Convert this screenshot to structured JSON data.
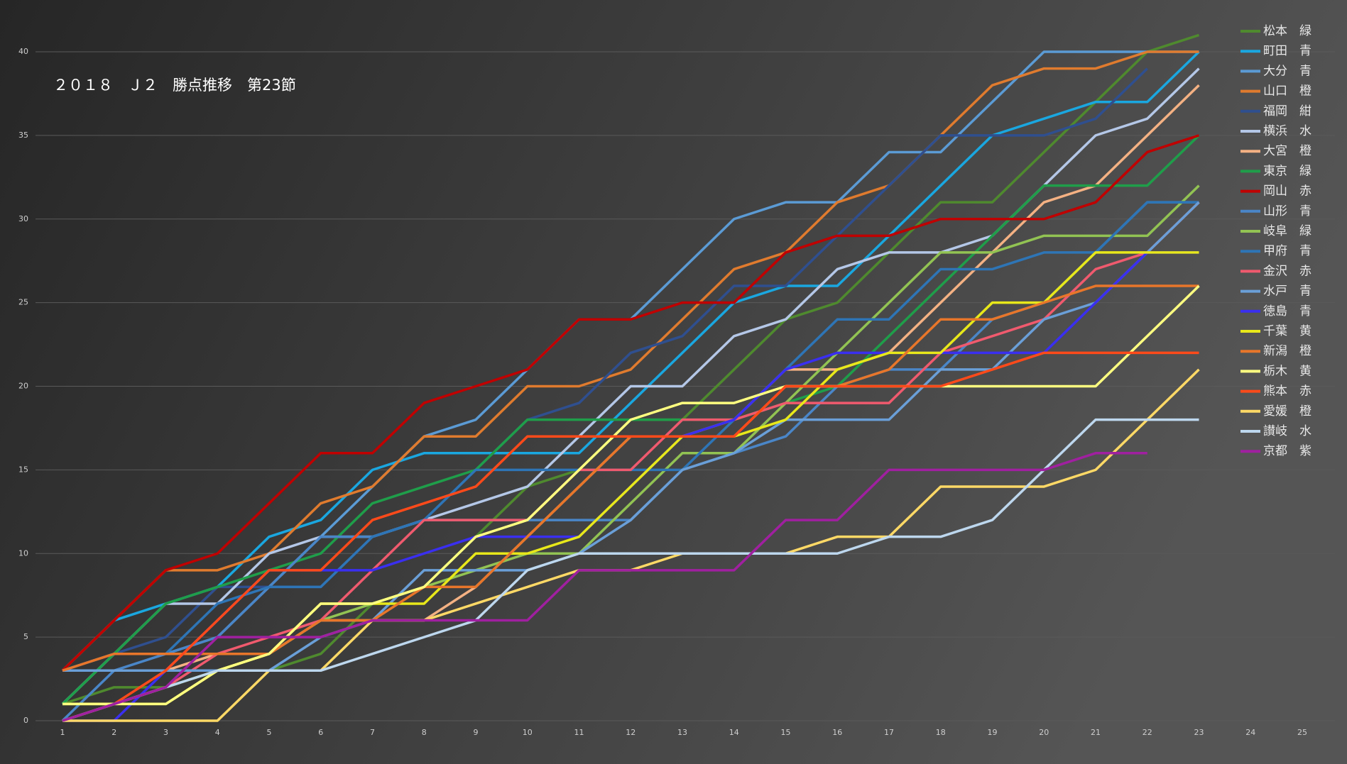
{
  "chart_data": {
    "type": "line",
    "title": "２０１８　Ｊ２　勝点推移　第23節",
    "categories": [
      "1",
      "2",
      "3",
      "4",
      "5",
      "6",
      "7",
      "8",
      "9",
      "10",
      "11",
      "12",
      "13",
      "14",
      "15",
      "16",
      "17",
      "18",
      "19",
      "20",
      "21",
      "22",
      "23",
      "24",
      "25"
    ],
    "ylim": [
      0,
      40
    ],
    "yticks": [
      0,
      5,
      10,
      15,
      20,
      25,
      30,
      35,
      40
    ],
    "grid": true,
    "legend": "right",
    "series": [
      {
        "name": "松本　緑",
        "color": "#4f8a2e",
        "values": [
          1,
          2,
          2,
          3,
          3,
          4,
          7,
          8,
          11,
          14,
          15,
          18,
          18,
          21,
          24,
          25,
          28,
          31,
          31,
          34,
          37,
          40,
          41,
          null,
          null
        ]
      },
      {
        "name": "町田　青",
        "color": "#1aa7e0",
        "values": [
          3,
          6,
          7,
          8,
          11,
          12,
          15,
          16,
          16,
          16,
          16,
          19,
          22,
          25,
          26,
          26,
          29,
          32,
          35,
          36,
          37,
          37,
          40,
          null,
          null
        ]
      },
      {
        "name": "大分　青",
        "color": "#5b9bd5",
        "values": [
          1,
          4,
          4,
          5,
          8,
          11,
          14,
          17,
          18,
          21,
          24,
          24,
          27,
          30,
          31,
          31,
          34,
          34,
          37,
          40,
          40,
          40,
          40,
          null,
          null
        ]
      },
      {
        "name": "山口　橙",
        "color": "#e07b2e",
        "values": [
          3,
          6,
          9,
          9,
          10,
          13,
          14,
          17,
          17,
          20,
          20,
          21,
          24,
          27,
          28,
          31,
          32,
          35,
          38,
          39,
          39,
          40,
          40,
          null,
          null
        ]
      },
      {
        "name": "福岡　紺",
        "color": "#2f4f8f",
        "values": [
          3,
          4,
          5,
          8,
          8,
          8,
          11,
          12,
          15,
          18,
          19,
          22,
          23,
          26,
          26,
          29,
          32,
          35,
          35,
          35,
          36,
          39,
          null,
          null,
          null
        ]
      },
      {
        "name": "横浜　水",
        "color": "#b4c7e7",
        "values": [
          1,
          4,
          7,
          7,
          10,
          11,
          11,
          12,
          13,
          14,
          17,
          20,
          20,
          23,
          24,
          27,
          28,
          28,
          29,
          32,
          35,
          36,
          39,
          null,
          null
        ]
      },
      {
        "name": "大宮　橙",
        "color": "#f4b183",
        "values": [
          3,
          3,
          3,
          4,
          4,
          6,
          6,
          6,
          8,
          11,
          14,
          17,
          17,
          18,
          21,
          21,
          22,
          25,
          28,
          31,
          32,
          35,
          38,
          null,
          null
        ]
      },
      {
        "name": "東京　緑",
        "color": "#1f9e4a",
        "values": [
          1,
          4,
          7,
          8,
          9,
          10,
          13,
          14,
          15,
          18,
          18,
          18,
          18,
          18,
          19,
          20,
          23,
          26,
          29,
          32,
          32,
          32,
          35,
          null,
          null
        ]
      },
      {
        "name": "岡山　赤",
        "color": "#c00000",
        "values": [
          3,
          6,
          9,
          10,
          13,
          16,
          16,
          19,
          20,
          21,
          24,
          24,
          25,
          25,
          28,
          29,
          29,
          30,
          30,
          30,
          31,
          34,
          35,
          null,
          null
        ]
      },
      {
        "name": "山形　青",
        "color": "#4a86c8",
        "values": [
          0,
          3,
          4,
          5,
          8,
          11,
          11,
          12,
          12,
          12,
          12,
          12,
          15,
          16,
          17,
          20,
          21,
          21,
          24,
          25,
          28,
          31,
          31,
          null,
          null
        ]
      },
      {
        "name": "岐阜　緑",
        "color": "#92c353",
        "values": [
          1,
          1,
          2,
          3,
          4,
          6,
          7,
          8,
          9,
          10,
          10,
          13,
          16,
          16,
          19,
          22,
          25,
          28,
          28,
          29,
          29,
          29,
          32,
          null,
          null
        ]
      },
      {
        "name": "甲府　青",
        "color": "#2e75b6",
        "values": [
          3,
          4,
          4,
          7,
          8,
          8,
          11,
          12,
          15,
          15,
          15,
          15,
          15,
          18,
          21,
          24,
          24,
          27,
          27,
          28,
          28,
          31,
          31,
          null,
          null
        ]
      },
      {
        "name": "金沢　赤",
        "color": "#f05a6e",
        "values": [
          0,
          1,
          2,
          4,
          5,
          6,
          9,
          12,
          12,
          12,
          15,
          15,
          18,
          18,
          19,
          19,
          19,
          22,
          23,
          24,
          27,
          28,
          31,
          null,
          null
        ]
      },
      {
        "name": "水戸　青",
        "color": "#6a9fd8",
        "values": [
          3,
          3,
          3,
          3,
          3,
          5,
          6,
          9,
          9,
          9,
          10,
          12,
          15,
          16,
          18,
          18,
          18,
          21,
          21,
          24,
          25,
          28,
          31,
          null,
          null
        ]
      },
      {
        "name": "徳島　青",
        "color": "#3a2ff0",
        "values": [
          0,
          0,
          3,
          6,
          9,
          9,
          9,
          10,
          11,
          11,
          11,
          14,
          17,
          18,
          21,
          22,
          22,
          22,
          22,
          22,
          25,
          28,
          28,
          null,
          null
        ]
      },
      {
        "name": "千葉　黄",
        "color": "#e8e81a",
        "values": [
          1,
          1,
          1,
          3,
          4,
          7,
          7,
          7,
          10,
          10,
          11,
          14,
          17,
          17,
          18,
          21,
          22,
          22,
          25,
          25,
          28,
          28,
          28,
          null,
          null
        ]
      },
      {
        "name": "新潟　橙",
        "color": "#e8762a",
        "values": [
          3,
          4,
          4,
          4,
          4,
          6,
          6,
          8,
          8,
          11,
          14,
          17,
          17,
          17,
          20,
          20,
          21,
          24,
          24,
          25,
          26,
          26,
          26,
          null,
          null
        ]
      },
      {
        "name": "栃木　黄",
        "color": "#ffff80",
        "values": [
          1,
          1,
          1,
          3,
          4,
          7,
          7,
          8,
          11,
          12,
          15,
          18,
          19,
          19,
          20,
          20,
          20,
          20,
          20,
          20,
          20,
          23,
          26,
          null,
          null
        ]
      },
      {
        "name": "熊本　赤",
        "color": "#ff4a1a",
        "values": [
          0,
          1,
          3,
          6,
          9,
          9,
          12,
          13,
          14,
          17,
          17,
          17,
          17,
          17,
          20,
          20,
          20,
          20,
          21,
          22,
          22,
          22,
          22,
          null,
          null
        ]
      },
      {
        "name": "愛媛　橙",
        "color": "#ffd966",
        "values": [
          0,
          0,
          0,
          0,
          3,
          3,
          6,
          6,
          7,
          8,
          9,
          9,
          10,
          10,
          10,
          11,
          11,
          14,
          14,
          14,
          15,
          18,
          21,
          null,
          null
        ]
      },
      {
        "name": "讃岐　水",
        "color": "#bdd7ee",
        "values": [
          0,
          1,
          2,
          3,
          3,
          3,
          4,
          5,
          6,
          9,
          10,
          10,
          10,
          10,
          10,
          10,
          11,
          11,
          12,
          15,
          18,
          18,
          18,
          null,
          null
        ]
      },
      {
        "name": "京都　紫",
        "color": "#a020a0",
        "values": [
          0,
          1,
          2,
          5,
          5,
          5,
          6,
          6,
          6,
          6,
          9,
          9,
          9,
          9,
          12,
          12,
          15,
          15,
          15,
          15,
          16,
          16,
          null,
          null,
          null
        ]
      }
    ]
  }
}
